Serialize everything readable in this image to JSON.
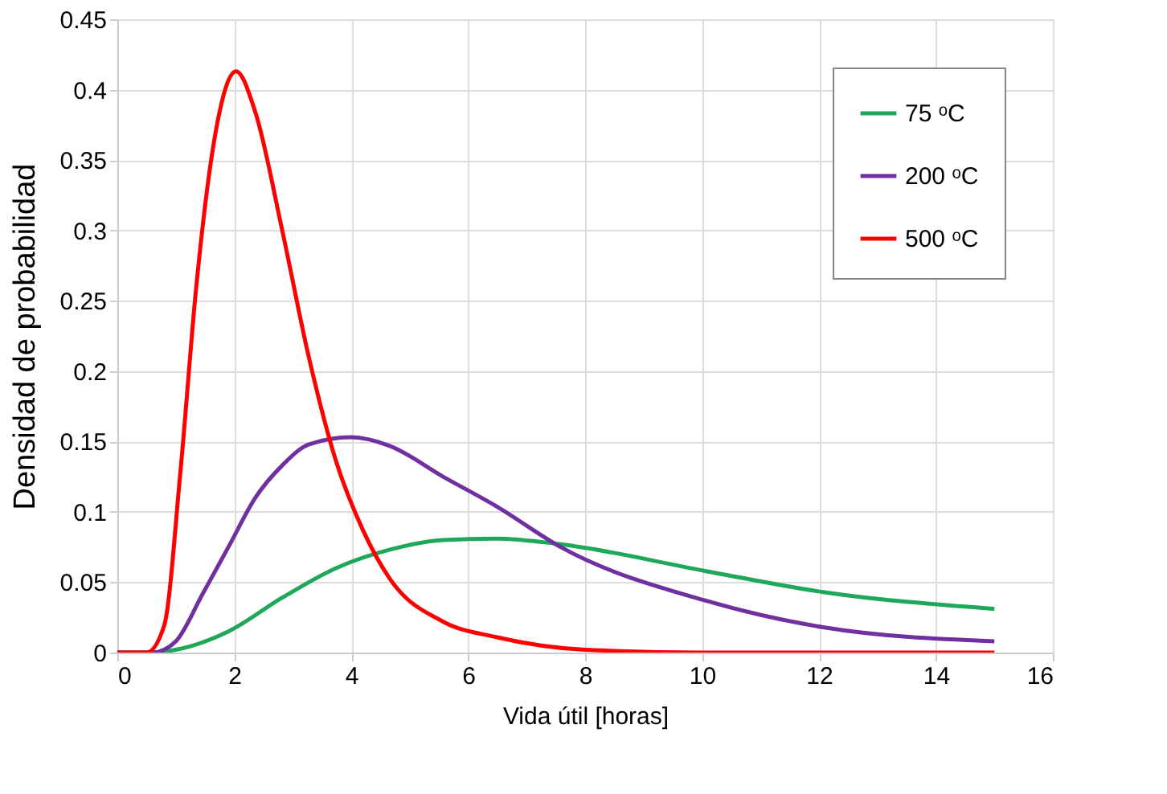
{
  "chart_data": {
    "type": "line",
    "xlabel": "Vida útil [horas]",
    "ylabel": "Densidad de probabilidad",
    "xlim": [
      0,
      16
    ],
    "ylim": [
      0,
      0.45
    ],
    "xticks": [
      0,
      2,
      4,
      6,
      8,
      10,
      12,
      14,
      16
    ],
    "yticks": [
      0,
      0.05,
      0.1,
      0.15,
      0.2,
      0.25,
      0.3,
      0.35,
      0.4,
      0.45
    ],
    "grid": true,
    "legend": "top right",
    "marker": "none",
    "line_style": "solid",
    "series": [
      {
        "name": "75 ᵒC",
        "color": "#1fa85a",
        "x": [
          0,
          0.6,
          1.0,
          1.9,
          2.82,
          3.74,
          4.65,
          5.57,
          6.48,
          7.58,
          10.05,
          12.07,
          15
        ],
        "values": [
          0,
          0,
          0.002,
          0.015,
          0.039,
          0.06,
          0.073,
          0.08,
          0.081,
          0.077,
          0.058,
          0.043,
          0.031
        ]
      },
      {
        "name": "200 ᵒC",
        "color": "#7030a0",
        "x": [
          0,
          0.6,
          1.0,
          1.45,
          1.9,
          2.36,
          2.82,
          3.28,
          4.0,
          4.65,
          5.57,
          6.48,
          7.58,
          10.05,
          12.07,
          15
        ],
        "values": [
          0,
          0,
          0.008,
          0.041,
          0.075,
          0.11,
          0.133,
          0.148,
          0.153,
          0.147,
          0.125,
          0.104,
          0.075,
          0.037,
          0.018,
          0.008
        ]
      },
      {
        "name": "500 ᵒC",
        "color": "#ff0000",
        "x": [
          0,
          0.5,
          0.8,
          1.08,
          1.35,
          1.63,
          2.03,
          2.36,
          2.82,
          3.28,
          3.74,
          4.2,
          4.65,
          5.57,
          6.48,
          8,
          10,
          15
        ],
        "values": [
          0,
          0,
          0.019,
          0.129,
          0.26,
          0.357,
          0.413,
          0.384,
          0.3,
          0.209,
          0.136,
          0.087,
          0.053,
          0.022,
          0.011,
          0.002,
          0,
          0
        ]
      }
    ]
  }
}
